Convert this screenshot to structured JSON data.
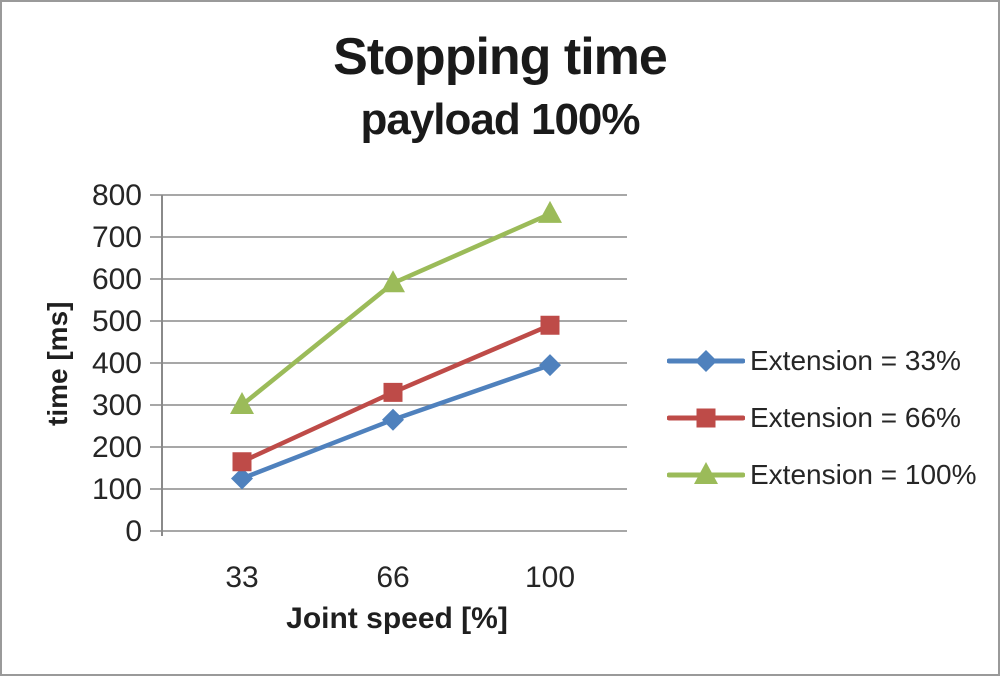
{
  "chart_data": {
    "type": "line",
    "title": "Stopping time",
    "subtitle": "payload 100%",
    "xlabel": "Joint speed [%]",
    "ylabel": "time [ms]",
    "categories": [
      "33",
      "66",
      "100"
    ],
    "series": [
      {
        "name": "Extension = 33%",
        "values": [
          125,
          265,
          395
        ],
        "color": "#4F81BD",
        "marker": "diamond"
      },
      {
        "name": "Extension = 66%",
        "values": [
          165,
          330,
          490
        ],
        "color": "#BE4B48",
        "marker": "square"
      },
      {
        "name": "Extension = 100%",
        "values": [
          300,
          590,
          755
        ],
        "color": "#9BBB59",
        "marker": "triangle"
      }
    ],
    "ylim": [
      0,
      800
    ],
    "yticks": [
      0,
      100,
      200,
      300,
      400,
      500,
      600,
      700,
      800
    ],
    "grid": true,
    "legend_position": "right"
  }
}
